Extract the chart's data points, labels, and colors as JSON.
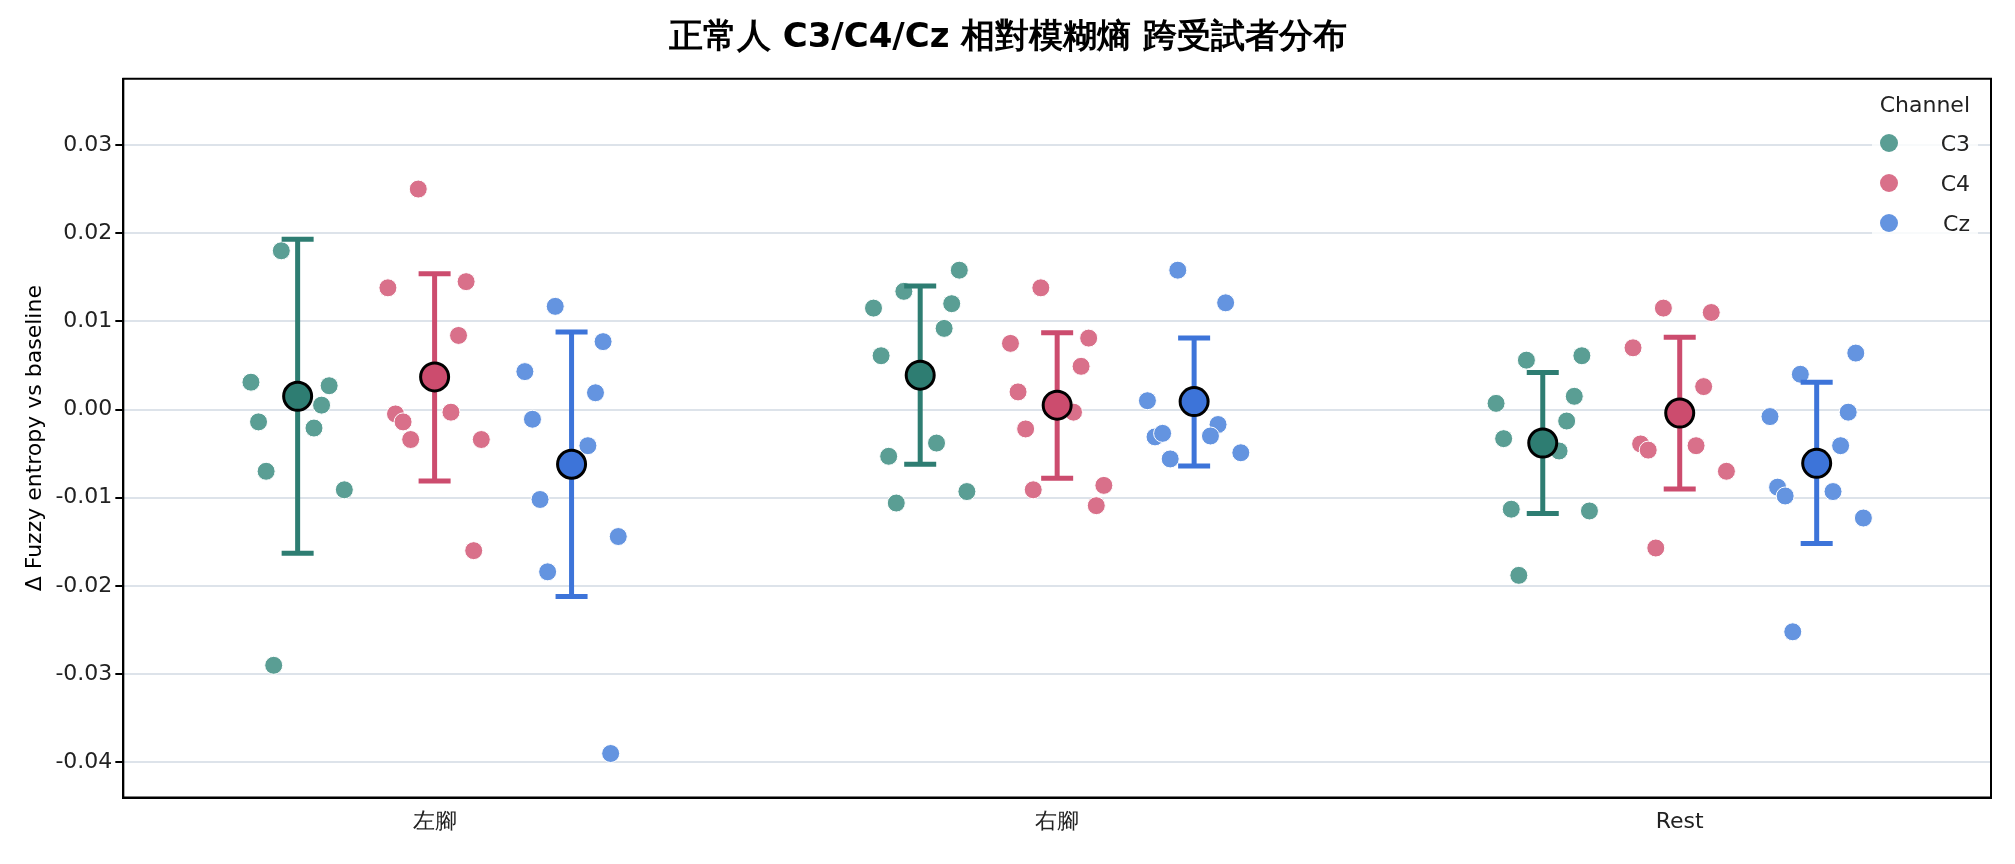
{
  "chart_data": {
    "type": "scatter",
    "title": "正常人 C3/C4/Cz 相對模糊熵 跨受試者分布",
    "ylabel": "Δ Fuzzy entropy vs baseline",
    "legend_title": "Channel",
    "legend": "top right",
    "grid": "y",
    "marker": "circle",
    "categories": [
      "左腳",
      "右腳",
      "Rest"
    ],
    "ylim": [
      -0.044,
      0.0375
    ],
    "yticks": [
      {
        "value": -0.04,
        "label": "-0.04"
      },
      {
        "value": -0.03,
        "label": "-0.03"
      },
      {
        "value": -0.02,
        "label": "-0.02"
      },
      {
        "value": -0.01,
        "label": "-0.01"
      },
      {
        "value": 0,
        "label": "0.00"
      },
      {
        "value": 0.01,
        "label": "0.01"
      },
      {
        "value": 0.02,
        "label": "0.02"
      },
      {
        "value": 0.03,
        "label": "0.03"
      }
    ],
    "series": [
      {
        "name": "C3",
        "color": "#5a9e94",
        "x": [
          "左腳",
          "左腳",
          "左腳",
          "左腳",
          "左腳",
          "左腳",
          "左腳",
          "左腳",
          "左腳",
          "右腳",
          "右腳",
          "右腳",
          "右腳",
          "右腳",
          "右腳",
          "右腳",
          "右腳",
          "右腳",
          "右腳",
          "Rest",
          "Rest",
          "Rest",
          "Rest",
          "Rest",
          "Rest",
          "Rest",
          "Rest",
          "Rest",
          "Rest"
        ],
        "values": [
          0.018,
          0.0027,
          0.0031,
          0.0005,
          -0.0014,
          -0.0021,
          -0.007,
          -0.0091,
          -0.029,
          0.0158,
          0.0134,
          0.012,
          0.0115,
          0.0092,
          0.0061,
          -0.0038,
          -0.0053,
          -0.0093,
          -0.0106,
          0.0061,
          0.0056,
          0.0015,
          0.0007,
          -0.0013,
          -0.0033,
          -0.0047,
          -0.0113,
          -0.0115,
          -0.0188
        ]
      },
      {
        "color": "#2e7d72",
        "x": [
          "左腳",
          "右腳",
          "Rest"
        ],
        "values": [
          0.0015,
          0.0039,
          -0.0038
        ],
        "errors": [
          [
            -0.0163,
            0.0193
          ],
          [
            -0.0062,
            0.014
          ],
          [
            -0.0118,
            0.0042
          ]
        ]
      },
      {
        "name": "C4",
        "color": "#d9708a",
        "x": [
          "左腳",
          "左腳",
          "左腳",
          "左腳",
          "左腳",
          "左腳",
          "左腳",
          "左腳",
          "左腳",
          "左腳",
          "右腳",
          "右腳",
          "右腳",
          "右腳",
          "右腳",
          "右腳",
          "右腳",
          "右腳",
          "右腳",
          "右腳",
          "Rest",
          "Rest",
          "Rest",
          "Rest",
          "Rest",
          "Rest",
          "Rest",
          "Rest",
          "Rest"
        ],
        "values": [
          0.025,
          0.0145,
          0.0138,
          0.0084,
          -0.0005,
          -0.0003,
          -0.0014,
          -0.0034,
          -0.0034,
          -0.016,
          0.0138,
          0.0081,
          0.0075,
          0.0049,
          0.002,
          -0.0003,
          -0.0022,
          -0.0086,
          -0.0091,
          -0.0109,
          0.0115,
          0.011,
          0.007,
          0.0026,
          -0.0039,
          -0.0041,
          -0.0046,
          -0.007,
          -0.0157
        ]
      },
      {
        "color": "#cc4c6e",
        "x": [
          "左腳",
          "右腳",
          "Rest"
        ],
        "values": [
          0.0037,
          0.0005,
          -0.0004
        ],
        "errors": [
          [
            -0.0081,
            0.0154
          ],
          [
            -0.0078,
            0.0087
          ],
          [
            -0.009,
            0.0082
          ]
        ]
      },
      {
        "name": "Cz",
        "color": "#6494e0",
        "x": [
          "左腳",
          "左腳",
          "左腳",
          "左腳",
          "左腳",
          "左腳",
          "左腳",
          "左腳",
          "左腳",
          "左腳",
          "右腳",
          "右腳",
          "右腳",
          "右腳",
          "右腳",
          "右腳",
          "右腳",
          "右腳",
          "右腳",
          "Rest",
          "Rest",
          "Rest",
          "Rest",
          "Rest",
          "Rest",
          "Rest",
          "Rest",
          "Rest",
          "Rest"
        ],
        "values": [
          0.0117,
          0.0077,
          0.0043,
          0.0019,
          -0.0011,
          -0.0041,
          -0.0102,
          -0.0144,
          -0.0184,
          -0.039,
          0.0158,
          0.0121,
          0.001,
          -0.0017,
          -0.0031,
          -0.003,
          -0.0027,
          -0.0049,
          -0.0056,
          0.0064,
          0.004,
          -0.0003,
          -0.0008,
          -0.0041,
          -0.0088,
          -0.0093,
          -0.0098,
          -0.0123,
          -0.0252
        ]
      },
      {
        "color": "#3d74d9",
        "x": [
          "左腳",
          "右腳",
          "Rest"
        ],
        "values": [
          -0.0062,
          0.0009,
          -0.0061
        ],
        "errors": [
          [
            -0.0212,
            0.0088
          ],
          [
            -0.0064,
            0.0081
          ],
          [
            -0.0152,
            0.0031
          ]
        ]
      }
    ]
  }
}
